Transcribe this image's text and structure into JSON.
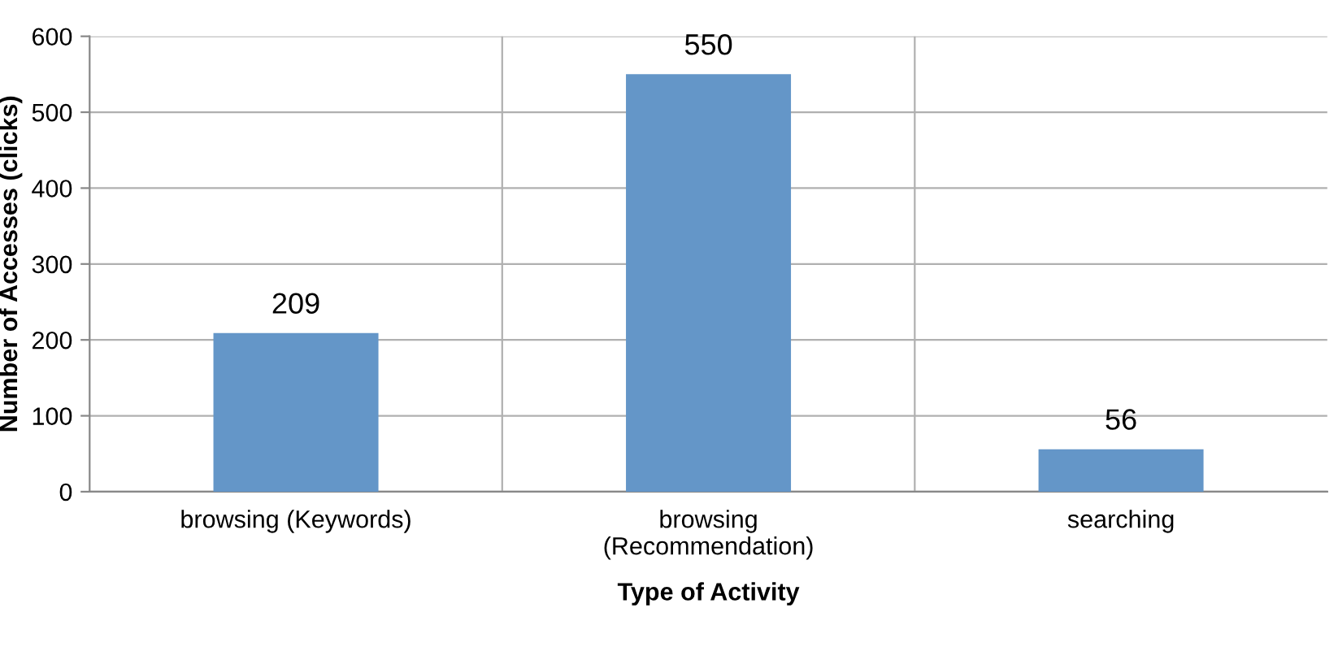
{
  "chart_data": {
    "type": "bar",
    "xlabel": "Type of Activity",
    "ylabel": "Number of Accesses (clicks)",
    "categories": [
      "browsing (Keywords)",
      "browsing\n(Recommendation)",
      "searching"
    ],
    "values": [
      209,
      550,
      56
    ],
    "color": "#6496c8",
    "ylim": [
      0,
      600
    ],
    "yticks": [
      0,
      100,
      200,
      300,
      400,
      500,
      600
    ],
    "grid": true,
    "data_labels": true
  }
}
